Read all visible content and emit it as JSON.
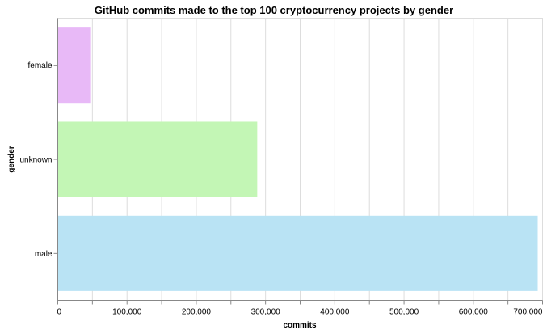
{
  "chart_data": {
    "type": "bar",
    "orientation": "horizontal",
    "title": "GitHub commits made to the top 100 cryptocurrency projects by gender",
    "xlabel": "commits",
    "ylabel": "gender",
    "categories": [
      "female",
      "unknown",
      "male"
    ],
    "values": [
      48000,
      288000,
      693000
    ],
    "colors": [
      "#e8b9f7",
      "#c3f6b5",
      "#b9e3f4"
    ],
    "xlim": [
      0,
      700000
    ],
    "xticks": [
      0,
      100000,
      200000,
      300000,
      400000,
      500000,
      600000,
      700000
    ],
    "xtick_labels": [
      "0",
      "100,000",
      "200,000",
      "300,000",
      "400,000",
      "500,000",
      "600,000",
      "700,000"
    ],
    "grid": true,
    "legend": "none"
  }
}
